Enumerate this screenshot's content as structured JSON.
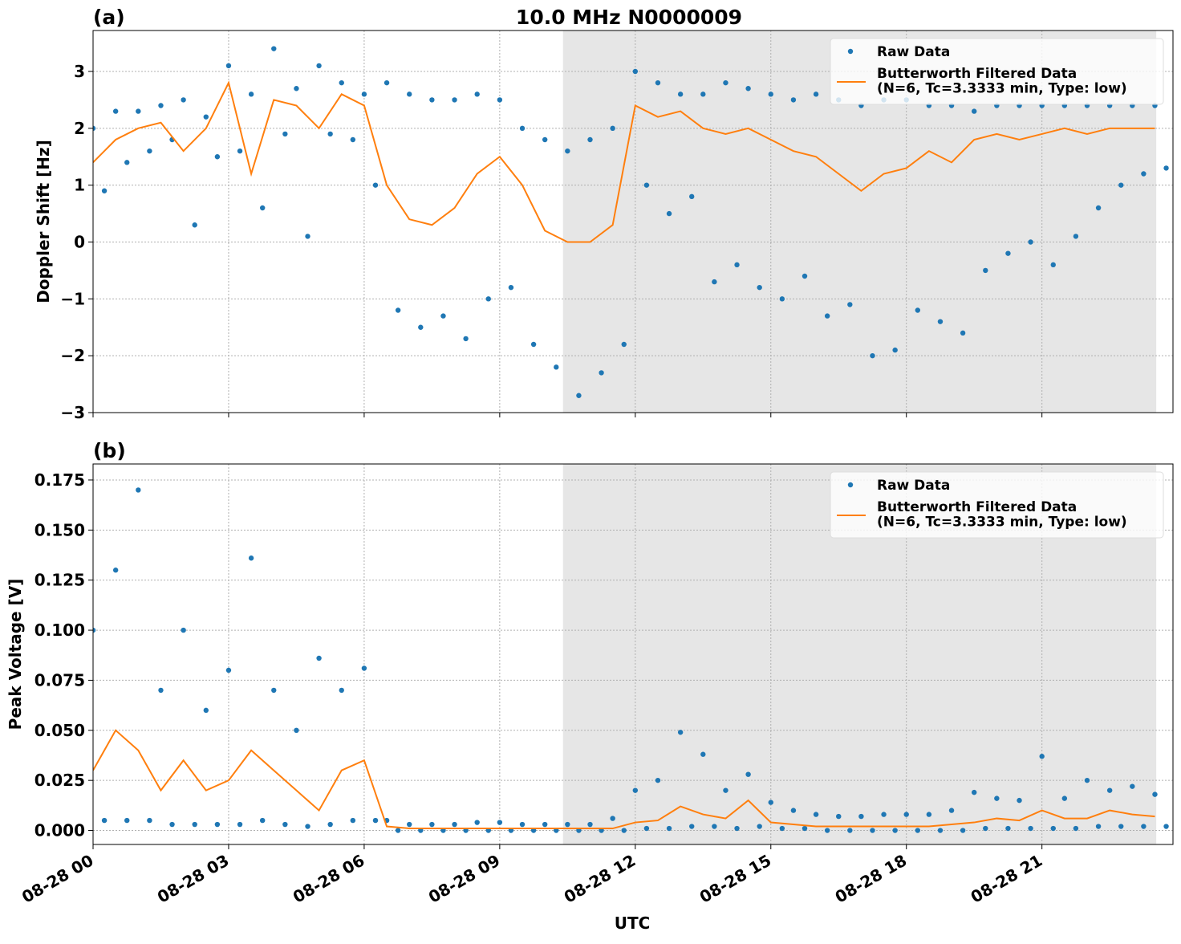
{
  "chart_data": [
    {
      "type": "scatter-line",
      "title": "10.0 MHz N0000009",
      "panel_label": "(a)",
      "ylabel": "Doppler Shift [Hz]",
      "xlim": [
        0,
        23.9
      ],
      "ylim": [
        -3,
        3.72
      ],
      "shade": [
        10.4,
        23.53
      ],
      "grid": true,
      "legend": "upper right",
      "xticks": [
        0,
        3,
        6,
        9,
        12,
        15,
        18,
        21
      ],
      "yticks": [
        {
          "value": -3,
          "label": "−3"
        },
        {
          "value": -2,
          "label": "−2"
        },
        {
          "value": -1,
          "label": "−1"
        },
        0,
        1,
        2,
        3
      ],
      "series": [
        {
          "name": "Raw Data",
          "kind": "points",
          "color": "#1f77b4",
          "x": [
            0,
            0.25,
            0.5,
            0.75,
            1,
            1.25,
            1.5,
            1.75,
            2,
            2.25,
            2.5,
            2.75,
            3,
            3.25,
            3.5,
            3.75,
            4,
            4.25,
            4.5,
            4.75,
            5,
            5.25,
            5.5,
            5.75,
            6,
            6.25,
            6.5,
            6.75,
            7,
            7.25,
            7.5,
            7.75,
            8,
            8.25,
            8.5,
            8.75,
            9,
            9.25,
            9.5,
            9.75,
            10,
            10.25,
            10.5,
            10.75,
            11,
            11.25,
            11.5,
            11.75,
            12,
            12.25,
            12.5,
            12.75,
            13,
            13.25,
            13.5,
            13.75,
            14,
            14.25,
            14.5,
            14.75,
            15,
            15.25,
            15.5,
            15.75,
            16,
            16.25,
            16.5,
            16.75,
            17,
            17.25,
            17.5,
            17.75,
            18,
            18.25,
            18.5,
            18.75,
            19,
            19.25,
            19.5,
            19.75,
            20,
            20.25,
            20.5,
            20.75,
            21,
            21.25,
            21.5,
            21.75,
            22,
            22.25,
            22.5,
            22.75,
            23,
            23.25,
            23.5,
            23.75
          ],
          "values": [
            2.0,
            0.9,
            2.3,
            1.4,
            2.3,
            1.6,
            2.4,
            1.8,
            2.5,
            0.3,
            2.2,
            1.5,
            3.1,
            1.6,
            2.6,
            0.6,
            3.4,
            1.9,
            2.7,
            0.1,
            3.1,
            1.9,
            2.8,
            1.8,
            2.6,
            1.0,
            2.8,
            -1.2,
            2.6,
            -1.5,
            2.5,
            -1.3,
            2.5,
            -1.7,
            2.6,
            -1.0,
            2.5,
            -0.8,
            2.0,
            -1.8,
            1.8,
            -2.2,
            1.6,
            -2.7,
            1.8,
            -2.3,
            2.0,
            -1.8,
            3.0,
            1.0,
            2.8,
            0.5,
            2.6,
            0.8,
            2.6,
            -0.7,
            2.8,
            -0.4,
            2.7,
            -0.8,
            2.6,
            -1.0,
            2.5,
            -0.6,
            2.6,
            -1.3,
            2.5,
            -1.1,
            2.4,
            -2.0,
            2.5,
            -1.9,
            2.5,
            -1.2,
            2.4,
            -1.4,
            2.4,
            -1.6,
            2.3,
            -0.5,
            2.4,
            -0.2,
            2.4,
            0.0,
            2.4,
            -0.4,
            2.4,
            0.1,
            2.4,
            0.6,
            2.4,
            1.0,
            2.4,
            1.2,
            2.4,
            1.3
          ]
        },
        {
          "name": "Butterworth Filtered Data\n(N=6, Tc=3.3333 min, Type: low)",
          "kind": "line",
          "color": "#ff7f0e",
          "x": [
            0,
            0.5,
            1,
            1.5,
            2,
            2.5,
            3,
            3.5,
            4,
            4.5,
            5,
            5.5,
            6,
            6.5,
            7,
            7.5,
            8,
            8.5,
            9,
            9.5,
            10,
            10.5,
            11,
            11.5,
            12,
            12.5,
            13,
            13.5,
            14,
            14.5,
            15,
            15.5,
            16,
            16.5,
            17,
            17.5,
            18,
            18.5,
            19,
            19.5,
            20,
            20.5,
            21,
            21.5,
            22,
            22.5,
            23,
            23.5
          ],
          "values": [
            1.4,
            1.8,
            2.0,
            2.1,
            1.6,
            2.0,
            2.8,
            1.2,
            2.5,
            2.4,
            2.0,
            2.6,
            2.4,
            1.0,
            0.4,
            0.3,
            0.6,
            1.2,
            1.5,
            1.0,
            0.2,
            0.0,
            0.0,
            0.3,
            2.4,
            2.2,
            2.3,
            2.0,
            1.9,
            2.0,
            1.8,
            1.6,
            1.5,
            1.2,
            0.9,
            1.2,
            1.3,
            1.6,
            1.4,
            1.8,
            1.9,
            1.8,
            1.9,
            2.0,
            1.9,
            2.0,
            2.0,
            2.0
          ]
        }
      ]
    },
    {
      "type": "scatter-line",
      "panel_label": "(b)",
      "ylabel": "Peak Voltage [V]",
      "xlabel": "UTC",
      "xlim": [
        0,
        23.9
      ],
      "ylim": [
        -0.007,
        0.183
      ],
      "shade": [
        10.4,
        23.53
      ],
      "grid": true,
      "legend": "upper right",
      "xticks": [
        {
          "value": 0,
          "label": "08-28 00"
        },
        {
          "value": 3,
          "label": "08-28 03"
        },
        {
          "value": 6,
          "label": "08-28 06"
        },
        {
          "value": 9,
          "label": "08-28 09"
        },
        {
          "value": 12,
          "label": "08-28 12"
        },
        {
          "value": 15,
          "label": "08-28 15"
        },
        {
          "value": 18,
          "label": "08-28 18"
        },
        {
          "value": 21,
          "label": "08-28 21"
        }
      ],
      "yticks": [
        {
          "value": 0,
          "label": "0.000"
        },
        {
          "value": 0.025,
          "label": "0.025"
        },
        {
          "value": 0.05,
          "label": "0.050"
        },
        {
          "value": 0.075,
          "label": "0.075"
        },
        {
          "value": 0.1,
          "label": "0.100"
        },
        {
          "value": 0.125,
          "label": "0.125"
        },
        {
          "value": 0.15,
          "label": "0.150"
        },
        {
          "value": 0.175,
          "label": "0.175"
        }
      ],
      "series": [
        {
          "name": "Raw Data",
          "kind": "points",
          "color": "#1f77b4",
          "x": [
            0,
            0.25,
            0.5,
            0.75,
            1,
            1.25,
            1.5,
            1.75,
            2,
            2.25,
            2.5,
            2.75,
            3,
            3.25,
            3.5,
            3.75,
            4,
            4.25,
            4.5,
            4.75,
            5,
            5.25,
            5.5,
            5.75,
            6,
            6.25,
            6.5,
            6.75,
            7,
            7.25,
            7.5,
            7.75,
            8,
            8.25,
            8.5,
            8.75,
            9,
            9.25,
            9.5,
            9.75,
            10,
            10.25,
            10.5,
            10.75,
            11,
            11.25,
            11.5,
            11.75,
            12,
            12.25,
            12.5,
            12.75,
            13,
            13.25,
            13.5,
            13.75,
            14,
            14.25,
            14.5,
            14.75,
            15,
            15.25,
            15.5,
            15.75,
            16,
            16.25,
            16.5,
            16.75,
            17,
            17.25,
            17.5,
            17.75,
            18,
            18.25,
            18.5,
            18.75,
            19,
            19.25,
            19.5,
            19.75,
            20,
            20.25,
            20.5,
            20.75,
            21,
            21.25,
            21.5,
            21.75,
            22,
            22.25,
            22.5,
            22.75,
            23,
            23.25,
            23.5,
            23.75
          ],
          "values": [
            0.1,
            0.005,
            0.13,
            0.005,
            0.17,
            0.005,
            0.07,
            0.003,
            0.1,
            0.003,
            0.06,
            0.003,
            0.08,
            0.003,
            0.136,
            0.005,
            0.07,
            0.003,
            0.05,
            0.002,
            0.086,
            0.003,
            0.07,
            0.005,
            0.081,
            0.005,
            0.005,
            0,
            0.003,
            0,
            0.003,
            0,
            0.003,
            0,
            0.004,
            0,
            0.004,
            0,
            0.003,
            0,
            0.003,
            0,
            0.003,
            0,
            0.003,
            0,
            0.006,
            0,
            0.02,
            0.001,
            0.025,
            0.001,
            0.049,
            0.002,
            0.038,
            0.002,
            0.02,
            0.001,
            0.028,
            0.002,
            0.014,
            0.001,
            0.01,
            0.001,
            0.008,
            0,
            0.007,
            0,
            0.007,
            0,
            0.008,
            0,
            0.008,
            0,
            0.008,
            0,
            0.01,
            0,
            0.019,
            0.001,
            0.016,
            0.001,
            0.015,
            0.001,
            0.037,
            0.001,
            0.016,
            0.001,
            0.025,
            0.002,
            0.02,
            0.002,
            0.022,
            0.002,
            0.018,
            0.002
          ]
        },
        {
          "name": "Butterworth Filtered Data\n(N=6, Tc=3.3333 min, Type: low)",
          "kind": "line",
          "color": "#ff7f0e",
          "x": [
            0,
            0.5,
            1,
            1.5,
            2,
            2.5,
            3,
            3.5,
            4,
            4.5,
            5,
            5.5,
            6,
            6.5,
            7,
            7.5,
            8,
            8.5,
            9,
            9.5,
            10,
            10.5,
            11,
            11.5,
            12,
            12.5,
            13,
            13.5,
            14,
            14.5,
            15,
            15.5,
            16,
            16.5,
            17,
            17.5,
            18,
            18.5,
            19,
            19.5,
            20,
            20.5,
            21,
            21.5,
            22,
            22.5,
            23,
            23.5
          ],
          "values": [
            0.03,
            0.05,
            0.04,
            0.02,
            0.035,
            0.02,
            0.025,
            0.04,
            0.03,
            0.02,
            0.01,
            0.03,
            0.035,
            0.002,
            0.001,
            0.001,
            0.001,
            0.001,
            0.001,
            0.001,
            0.001,
            0.001,
            0.001,
            0.001,
            0.004,
            0.005,
            0.012,
            0.008,
            0.006,
            0.015,
            0.004,
            0.003,
            0.002,
            0.002,
            0.002,
            0.002,
            0.002,
            0.002,
            0.003,
            0.004,
            0.006,
            0.005,
            0.01,
            0.006,
            0.006,
            0.01,
            0.008,
            0.007
          ]
        }
      ]
    }
  ]
}
